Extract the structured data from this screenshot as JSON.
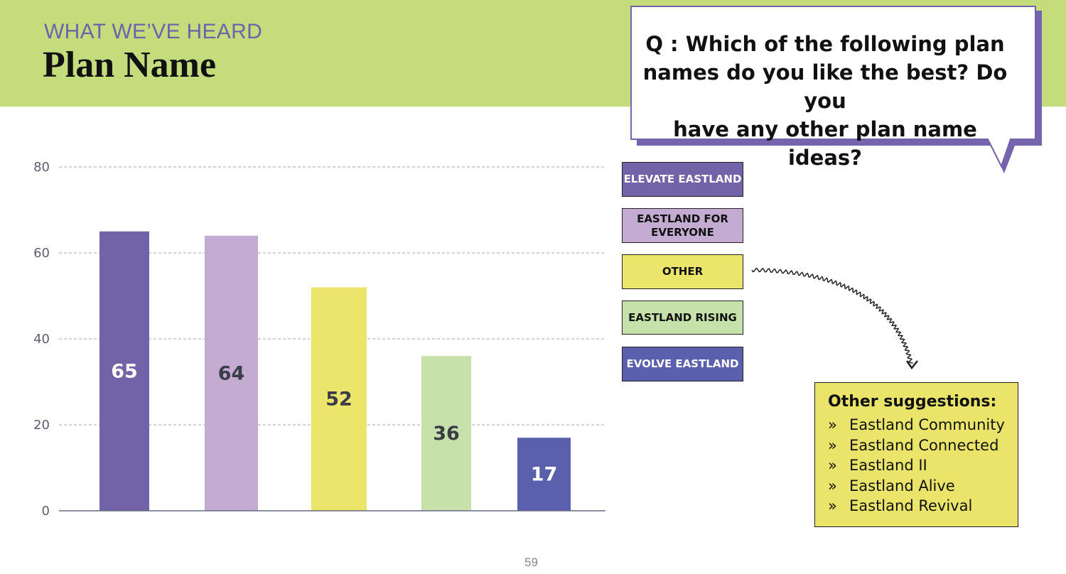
{
  "header": {
    "kicker": "WHAT WE’VE HEARD",
    "title": "Plan Name"
  },
  "question": {
    "text": "Q : Which of the following plan names do you like the best? Do you have any other plan name ideas?",
    "lines": [
      "Q : Which of the following plan",
      "names do you like the best? Do you",
      "have any other plan name ideas?"
    ]
  },
  "chart_data": {
    "type": "bar",
    "title": "",
    "xlabel": "",
    "ylabel": "",
    "ylim": [
      0,
      80
    ],
    "yticks": [
      0,
      20,
      40,
      60,
      80
    ],
    "grid": true,
    "legend_placement": "right",
    "categories": [
      "ELEVATE EASTLAND",
      "EASTLAND FOR EVERYONE",
      "OTHER",
      "EASTLAND RISING",
      "EVOLVE EASTLAND"
    ],
    "values": [
      65,
      64,
      52,
      36,
      17
    ],
    "value_labels": [
      "65",
      "64",
      "52",
      "36",
      "17"
    ],
    "colors": [
      "#7262a8",
      "#c3abd2",
      "#ebe66b",
      "#c6e2aa",
      "#5a60ad"
    ],
    "label_colors": [
      "#ffffff",
      "#3a3d48",
      "#3a3d48",
      "#3a3d48",
      "#ffffff"
    ]
  },
  "legend": [
    {
      "label": "ELEVATE EASTLAND",
      "color": "#7262a8",
      "text_color": "#ffffff"
    },
    {
      "label": "EASTLAND FOR EVERYONE",
      "color": "#c3abd2",
      "text_color": "#111111"
    },
    {
      "label": "OTHER",
      "color": "#ebe66b",
      "text_color": "#111111"
    },
    {
      "label": "EASTLAND RISING",
      "color": "#c6e2aa",
      "text_color": "#111111"
    },
    {
      "label": "EVOLVE EASTLAND",
      "color": "#5a60ad",
      "text_color": "#ffffff"
    }
  ],
  "suggestions": {
    "title": "Other suggestions:",
    "bullet": "»",
    "items": [
      "Eastland Community",
      "Eastland Connected",
      "Eastland II",
      "Eastland Alive",
      "Eastland Revival"
    ]
  },
  "page_number": "59",
  "colors": {
    "header_band": "#c5dc7d",
    "bubble_shadow": "#7563ad",
    "suggestion_box": "#eae56a"
  }
}
